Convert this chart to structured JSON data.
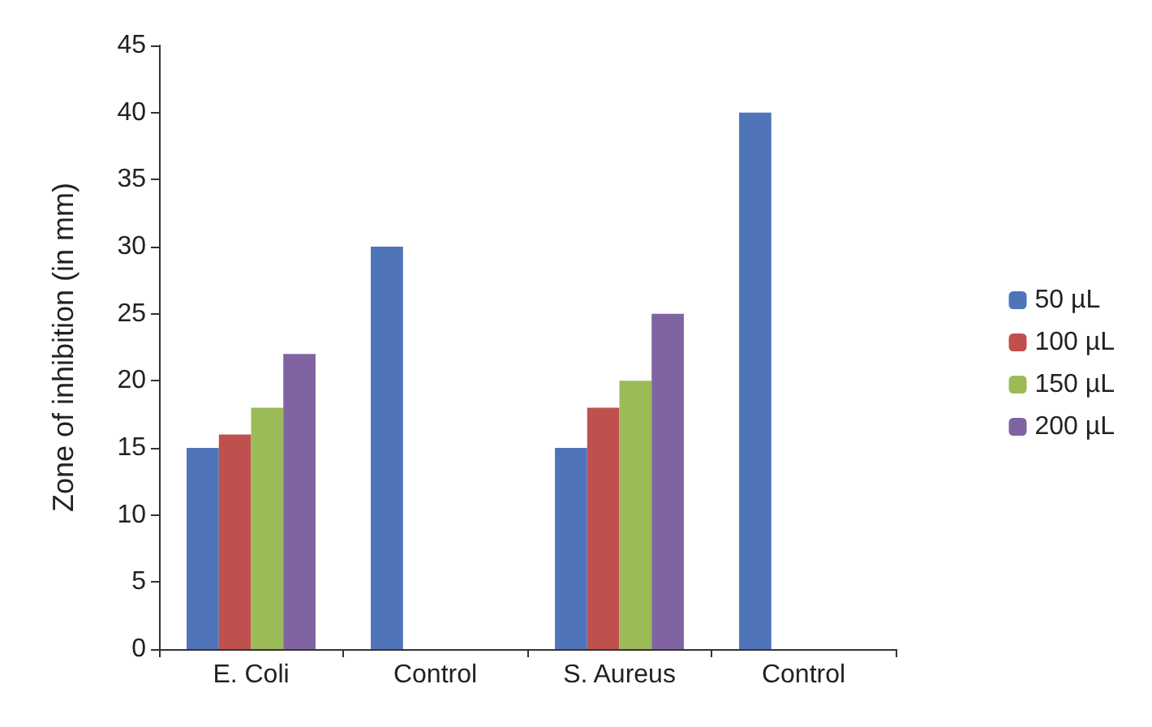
{
  "chart_data": {
    "type": "bar",
    "ylabel": "Zone of inhibition (in mm)",
    "categories": [
      "E. Coli",
      "Control",
      "S. Aureus",
      "Control"
    ],
    "series": [
      {
        "name": "50 µL",
        "color": "#4f74b9",
        "values": [
          15,
          30,
          15,
          40
        ]
      },
      {
        "name": "100 µL",
        "color": "#c0504d",
        "values": [
          16,
          null,
          18,
          null
        ]
      },
      {
        "name": "150 µL",
        "color": "#9bbb59",
        "values": [
          18,
          null,
          20,
          null
        ]
      },
      {
        "name": "200 µL",
        "color": "#8064a2",
        "values": [
          22,
          null,
          25,
          null
        ]
      }
    ],
    "ylim": [
      0,
      45
    ],
    "yticks": [
      0,
      5,
      10,
      15,
      20,
      25,
      30,
      35,
      40,
      45
    ],
    "grid": false,
    "legend": "right"
  }
}
